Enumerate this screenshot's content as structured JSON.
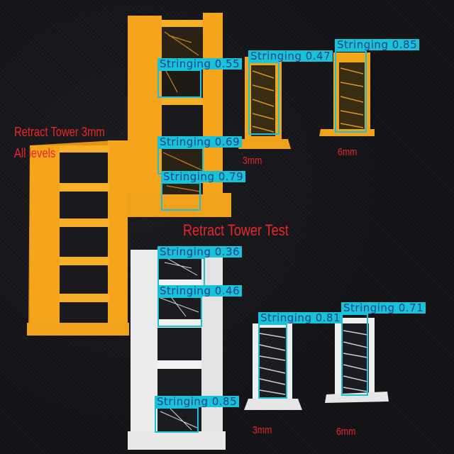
{
  "annotations": {
    "orange_title": "Retract Tower 3mm",
    "orange_subtitle": "All levels",
    "center_title": "Retract Tower Test",
    "label_3mm_top": "3mm",
    "label_6mm_top": "6mm",
    "label_3mm_bottom": "3mm",
    "label_6mm_bottom": "6mm"
  },
  "detections": [
    {
      "label": "Stringing 0.55",
      "confidence": 0.55
    },
    {
      "label": "Stringing 0.47",
      "confidence": 0.47
    },
    {
      "label": "Stringing 0.85",
      "confidence": 0.85
    },
    {
      "label": "Stringing 0.69",
      "confidence": 0.69
    },
    {
      "label": "Stringing 0.79",
      "confidence": 0.79
    },
    {
      "label": "Stringing 0.36",
      "confidence": 0.36
    },
    {
      "label": "Stringing 0.46",
      "confidence": 0.46
    },
    {
      "label": "Stringing 0.81",
      "confidence": 0.81
    },
    {
      "label": "Stringing 0.71",
      "confidence": 0.71
    },
    {
      "label": "Stringing 0.85",
      "confidence": 0.85
    }
  ],
  "colors": {
    "orange_filament": "#f5a51c",
    "white_filament": "#eeeeee",
    "box": "#18c3d8",
    "annotation_text": "#e8262b"
  }
}
